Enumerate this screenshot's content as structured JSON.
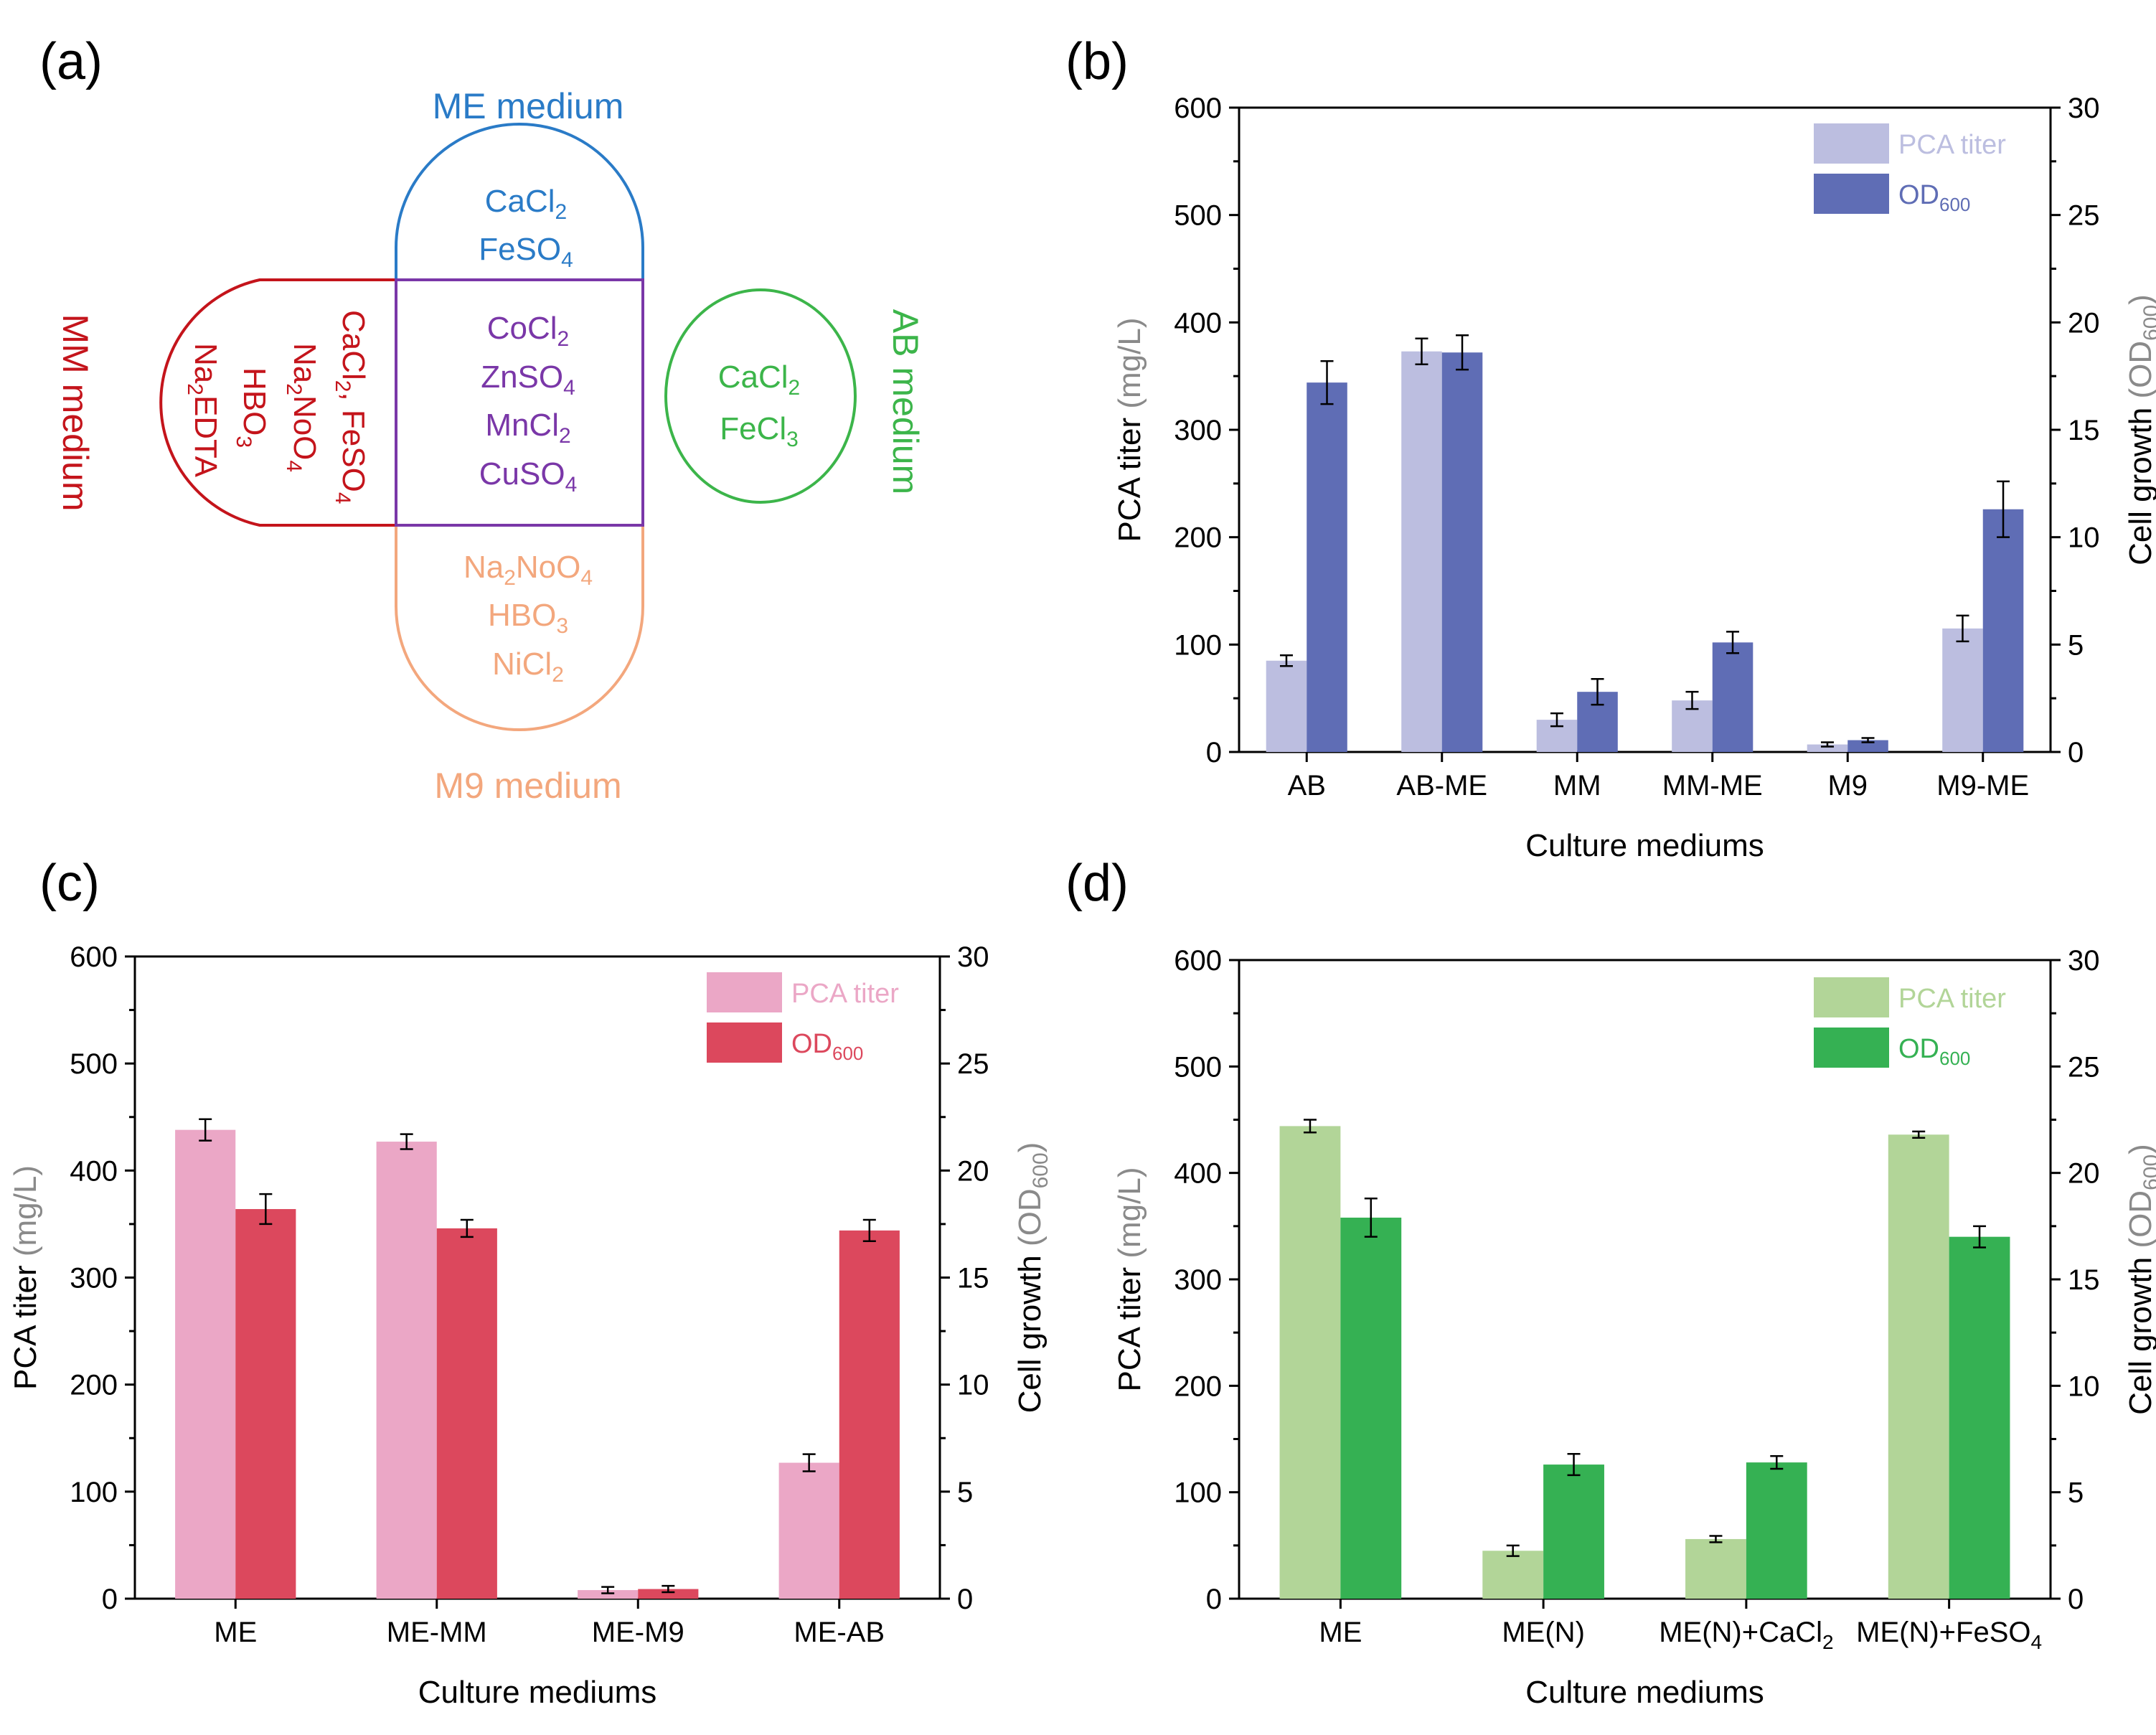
{
  "panels": {
    "a": {
      "label": "(a)",
      "venn": {
        "ME": {
          "title": "ME medium",
          "items": [
            "CaCl2",
            "FeSO4"
          ],
          "color": "#2a7bc7"
        },
        "MM": {
          "title": "MM medium",
          "items": [
            "CaCl2, FeSO4",
            "Na2NoO4",
            "HBO3",
            "Na2EDTA"
          ],
          "color": "#c4141b"
        },
        "AB": {
          "title": "AB medium",
          "items": [
            "CaCl2",
            "FeCl3"
          ],
          "color": "#3cb54a"
        },
        "M9": {
          "title": "M9 medium",
          "items": [
            "Na2NoO4",
            "HBO3",
            "NiCl2"
          ],
          "color": "#f3a77d"
        },
        "shared": {
          "items": [
            "CoCl2",
            "ZnSO4",
            "MnCl2",
            "CuSO4"
          ],
          "color": "#7a37a8"
        }
      }
    },
    "b": {
      "label": "(b)"
    },
    "c": {
      "label": "(c)"
    },
    "d": {
      "label": "(d)"
    }
  },
  "chart_data": [
    {
      "panel": "b",
      "type": "bar",
      "xlabel": "Culture mediums",
      "ylabel": "PCA titer",
      "ylabel_unit": "(mg/L)",
      "y2label": "Cell growth",
      "y2label_unit": "(OD600)",
      "ylim": [
        0,
        600
      ],
      "y2lim": [
        0,
        30
      ],
      "yticks": [
        0,
        100,
        200,
        300,
        400,
        500,
        600
      ],
      "y2ticks": [
        0,
        5,
        10,
        15,
        20,
        25,
        30
      ],
      "categories": [
        "AB",
        "AB-ME",
        "MM",
        "MM-ME",
        "M9",
        "M9-ME"
      ],
      "legend_position": "top-right",
      "series": [
        {
          "name": "PCA titer",
          "axis": "left",
          "color": "#bcbee0",
          "values": [
            85,
            373,
            30,
            48,
            7,
            115
          ],
          "errors": [
            5,
            12,
            6,
            8,
            2,
            12
          ]
        },
        {
          "name": "OD600",
          "axis": "right",
          "color": "#5f6db5",
          "values": [
            17.2,
            18.6,
            2.8,
            5.1,
            0.55,
            11.3
          ],
          "errors": [
            1.0,
            0.8,
            0.6,
            0.5,
            0.1,
            1.3
          ]
        }
      ]
    },
    {
      "panel": "c",
      "type": "bar",
      "xlabel": "Culture mediums",
      "ylabel": "PCA titer",
      "ylabel_unit": "(mg/L)",
      "y2label": "Cell growth",
      "y2label_unit": "(OD600)",
      "ylim": [
        0,
        600
      ],
      "y2lim": [
        0,
        30
      ],
      "yticks": [
        0,
        100,
        200,
        300,
        400,
        500,
        600
      ],
      "y2ticks": [
        0,
        5,
        10,
        15,
        20,
        25,
        30
      ],
      "categories": [
        "ME",
        "ME-MM",
        "ME-M9",
        "ME-AB"
      ],
      "legend_position": "top-right",
      "series": [
        {
          "name": "PCA titer",
          "axis": "left",
          "color": "#eba7c6",
          "values": [
            438,
            427,
            8,
            127
          ],
          "errors": [
            10,
            7,
            3,
            8
          ]
        },
        {
          "name": "OD600",
          "axis": "right",
          "color": "#dc485d",
          "values": [
            18.2,
            17.3,
            0.45,
            17.2
          ],
          "errors": [
            0.7,
            0.4,
            0.15,
            0.5
          ]
        }
      ]
    },
    {
      "panel": "d",
      "type": "bar",
      "xlabel": "Culture mediums",
      "ylabel": "PCA titer",
      "ylabel_unit": "(mg/L)",
      "y2label": "Cell growth",
      "y2label_unit": "(OD600)",
      "ylim": [
        0,
        600
      ],
      "y2lim": [
        0,
        30
      ],
      "yticks": [
        0,
        100,
        200,
        300,
        400,
        500,
        600
      ],
      "y2ticks": [
        0,
        5,
        10,
        15,
        20,
        25,
        30
      ],
      "categories": [
        "ME",
        "ME(N)",
        "ME(N)+CaCl2",
        "ME(N)+FeSO4"
      ],
      "legend_position": "top-right",
      "series": [
        {
          "name": "PCA titer",
          "axis": "left",
          "color": "#b2d598",
          "values": [
            444,
            45,
            56,
            436
          ],
          "errors": [
            6,
            5,
            3,
            3
          ]
        },
        {
          "name": "OD600",
          "axis": "right",
          "color": "#35b153",
          "values": [
            17.9,
            6.3,
            6.4,
            17.0
          ],
          "errors": [
            0.9,
            0.5,
            0.3,
            0.5
          ]
        }
      ]
    }
  ]
}
